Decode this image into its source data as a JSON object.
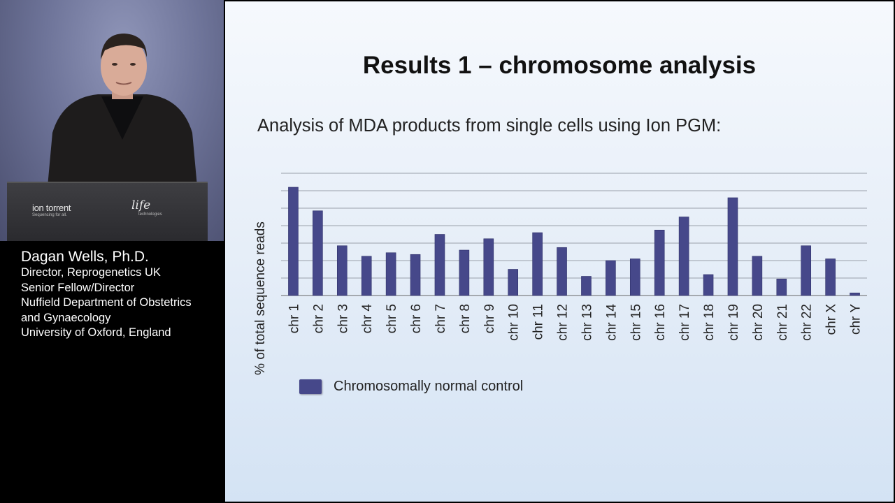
{
  "speaker": {
    "name": "Dagan Wells, Ph.D.",
    "lines": [
      "Director, Reprogenetics UK",
      "Senior Fellow/Director",
      "Nuffield Department of Obstetrics",
      "and Gynaecology",
      "University of Oxford, England"
    ]
  },
  "podium": {
    "brand1": "ion torrent",
    "brand1_tag": "Sequencing for all.",
    "brand2": "life",
    "brand2_tag": "technologies"
  },
  "slide": {
    "title": "Results 1 – chromosome analysis",
    "subtitle": "Analysis of MDA products from single cells using Ion PGM:"
  },
  "chart_data": {
    "type": "bar",
    "ylabel": "% of total sequence reads",
    "categories": [
      "chr 1",
      "chr 2",
      "chr 3",
      "chr 4",
      "chr 5",
      "chr 6",
      "chr 7",
      "chr 8",
      "chr 9",
      "chr 10",
      "chr 11",
      "chr 12",
      "chr 13",
      "chr 14",
      "chr 15",
      "chr 16",
      "chr 17",
      "chr 18",
      "chr 19",
      "chr 20",
      "chr 21",
      "chr 22",
      "chr X",
      "chr Y"
    ],
    "series": [
      {
        "name": "Chromosomally normal control",
        "values": [
          6.2,
          4.85,
          2.85,
          2.25,
          2.45,
          2.35,
          3.5,
          2.6,
          3.25,
          1.5,
          3.6,
          2.75,
          1.1,
          2.0,
          2.1,
          3.75,
          4.5,
          1.2,
          5.6,
          2.25,
          0.95,
          2.85,
          2.1,
          0.15
        ]
      }
    ],
    "ylim": [
      0,
      7
    ],
    "gridlines": 7,
    "grid": true,
    "bar_color": "#46488a",
    "legend_position": "bottom-left"
  }
}
